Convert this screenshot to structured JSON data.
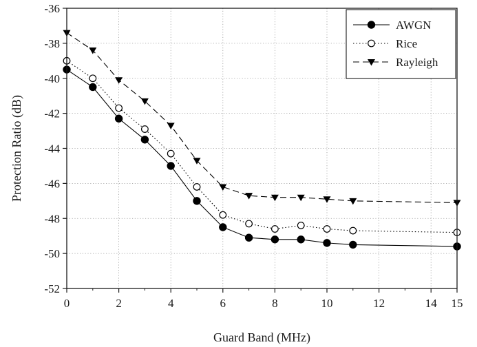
{
  "chart_data": {
    "type": "line",
    "title": "",
    "xlabel": "Guard Band (MHz)",
    "ylabel": "Protection Ratio (dB)",
    "xlim": [
      0,
      15
    ],
    "ylim": [
      -52,
      -36
    ],
    "x_ticks": [
      "0",
      "2",
      "4",
      "6",
      "8",
      "10",
      "12",
      "14",
      "15"
    ],
    "y_ticks": [
      "-36",
      "-38",
      "-40",
      "-42",
      "-44",
      "-46",
      "-48",
      "-50",
      "-52"
    ],
    "grid": true,
    "legend_position": "top-right",
    "series": [
      {
        "name": "AWGN",
        "line": "solid",
        "marker": "filled-circle",
        "x": [
          0,
          1,
          2,
          3,
          4,
          5,
          6,
          7,
          8,
          9,
          10,
          11,
          15
        ],
        "y": [
          -39.5,
          -40.5,
          -42.3,
          -43.5,
          -45.0,
          -47.0,
          -48.5,
          -49.1,
          -49.2,
          -49.2,
          -49.4,
          -49.5,
          -49.6
        ]
      },
      {
        "name": "Rice",
        "line": "dotted",
        "marker": "open-circle",
        "x": [
          0,
          1,
          2,
          3,
          4,
          5,
          6,
          7,
          8,
          9,
          10,
          11,
          15
        ],
        "y": [
          -39.0,
          -40.0,
          -41.7,
          -42.9,
          -44.3,
          -46.2,
          -47.8,
          -48.3,
          -48.6,
          -48.4,
          -48.6,
          -48.7,
          -48.8
        ]
      },
      {
        "name": "Rayleigh",
        "line": "dashed",
        "marker": "filled-triangle-down",
        "x": [
          0,
          1,
          2,
          3,
          4,
          5,
          6,
          7,
          8,
          9,
          10,
          11,
          15
        ],
        "y": [
          -37.4,
          -38.4,
          -40.1,
          -41.3,
          -42.7,
          -44.7,
          -46.2,
          -46.7,
          -46.8,
          -46.8,
          -46.9,
          -47.0,
          -47.1
        ]
      }
    ]
  }
}
